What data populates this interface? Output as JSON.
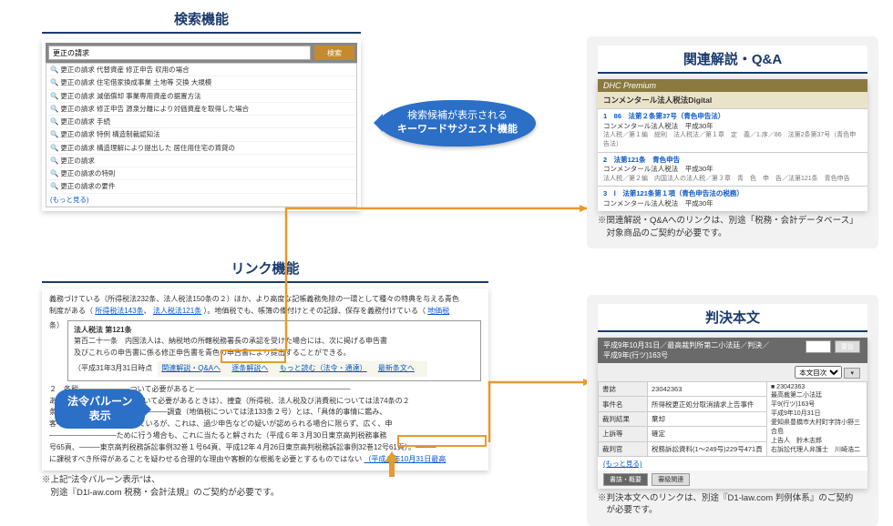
{
  "colors": {
    "primary": "#1a3a6e",
    "callout": "#2b6fc7",
    "highlight": "#e79a2d",
    "dhc": "#8a7a3f"
  },
  "sections": {
    "search": "検索機能",
    "link": "リンク機能",
    "qa": "関連解説・Q&A",
    "judg": "判決本文"
  },
  "search": {
    "query": "更正の請求",
    "button": "検索",
    "suggestions": [
      "更正の請求 代替資産 修正申告 収用の場合",
      "更正の請求 住宅借家換成事業 土地等 交換 大規模",
      "更正の請求 減価償却 事業専用資産の据置方法",
      "更正の請求 修正申告 源泉分離により対価資産を取得した場合",
      "更正の請求 手続",
      "更正の請求 特例 構造制裁認知法",
      "更正の請求 構造理解により提出した 居住用住宅の賃貸の",
      "更正の請求",
      "更正の請求の特則",
      "更正の請求の要件"
    ],
    "more": "(もっと見る)"
  },
  "callout1": {
    "line1": "検索候補が表示される",
    "line2": "キーワードサジェスト機能"
  },
  "callout2": {
    "line1": "法令バルーン",
    "line2": "表示"
  },
  "linkDoc": {
    "lead": "義務づけている（所得税法232条、法人税法150条の２）ほか、より高度な記帳義務免除の一環として種々の特典を与える青色",
    "line2_a": "制度がある（",
    "line2_links": [
      "所得税法143条",
      "法人税法121条"
    ],
    "line2_b": "）。地価税でも、帳簿の備付けとその記録、保存を義務付けている（",
    "line2_end": "地価税",
    "no": "条）",
    "balloon_title": "法人税法 第121条",
    "balloon1": "第百二十一条　内国法人は、納税地の所轄税務署長の承認を受けた場合には、次に掲げる申告書",
    "balloon2": "及びこれらの申告書に係る修正申告書を青色の申告書により提出することができる。",
    "balloon_date": "（平成31年3月31日時点",
    "balloon_links": [
      "関連解説・Q&Aへ",
      "逐条解説へ",
      "もっと読む（法令・通達）",
      "最新条文へ"
    ],
    "para_a": "２　各税──────────ついて必要があると──────────────────────────────",
    "para_b": "ある（──────────────いて必要があるときは）、捜査（所得税、法人税及び消費税については法74条の２",
    "para_c": "条）────────────────────調査（地価税については法133条２号）とは、「具体的事情に鑑み、",
    "para_d": "客─────────────されているが、これは、過少申告などの疑いが認められる場合に限らず、広く、申",
    "para_e": "─────────────ために行う場合も、これに当たると解された（平成６年３月30日東京高判税務事務",
    "para_f": "号65頁、────東京高判税務訴訟事例32巻１号64頁、平成12年４月26日東京高判税務訴訟事例32巻12号61頁）。────",
    "para_g": "に課税すべき所得があることを疑わせる合理的な理由や客観的な根拠を必要とするものではない",
    "case_link": "（平成９年10月31日最高"
  },
  "linkNote": {
    "l1": "※上記\"法令バルーン表示\"は、",
    "l2": "　別途『D1l-aw.com 税務・会計法規』のご契約が必要です。"
  },
  "qa": {
    "premium": "DHC Premium",
    "sub": "コンメンタール法人税法Digital",
    "rows": [
      {
        "h": "1　86　法第２条第37号（青色申告法）",
        "b": "コンメンタール法人税法　平成30年",
        "c": "法人税／第１編　総則　法人税法／第１章　定　義／1.序／86　法第2条第37号（青色申告法）"
      },
      {
        "h": "2　法第121条　青色申告",
        "b": "コンメンタール法人税法　平成30年",
        "c": "法人税／第２編　内国法人の法人税／第３章　青　色　申　告／法第121条　青色申告"
      },
      {
        "h": "3　Ⅰ　法第121条第１項（青色申告法の税務）",
        "b": "コンメンタール法人税法　平成30年"
      }
    ],
    "note": "※関連解説・Q&Aへのリンクは、別途「税務・会計データベース」\n　対象商品のご契約が必要です。"
  },
  "judg": {
    "title": "平成9年10月31日／最高裁判所第二小法廷／判決／平成9年(行ツ)163号",
    "select": "本文目次",
    "btn1": "本文",
    "btn2": "要旨",
    "rows": [
      [
        "書誌",
        "23042363",
        ""
      ],
      [
        "事件名",
        "所得税更正処分取消請求上告事件",
        "■ 23042363"
      ],
      [
        "裁判結果",
        "棄却",
        "最高裁第二小法廷"
      ],
      [
        "上訴等",
        "確定",
        "平9(行ツ)163号"
      ],
      [
        "裁判官",
        "税務訴訟資料(1〜249号)229号471頁",
        "平成9年10月31日\n愛知県豊橋市大村町字詩小野三合島\n上告人　鈴木志郎\n右訴訟代理人弁護士　川崎浩二"
      ]
    ],
    "more": "(もっと見る)",
    "tabs": [
      "書誌・概要",
      "審級関連"
    ],
    "note": "※判決本文へのリンクは、別途『D1-law.com 判例体系』のご契約\n　が必要です。"
  }
}
